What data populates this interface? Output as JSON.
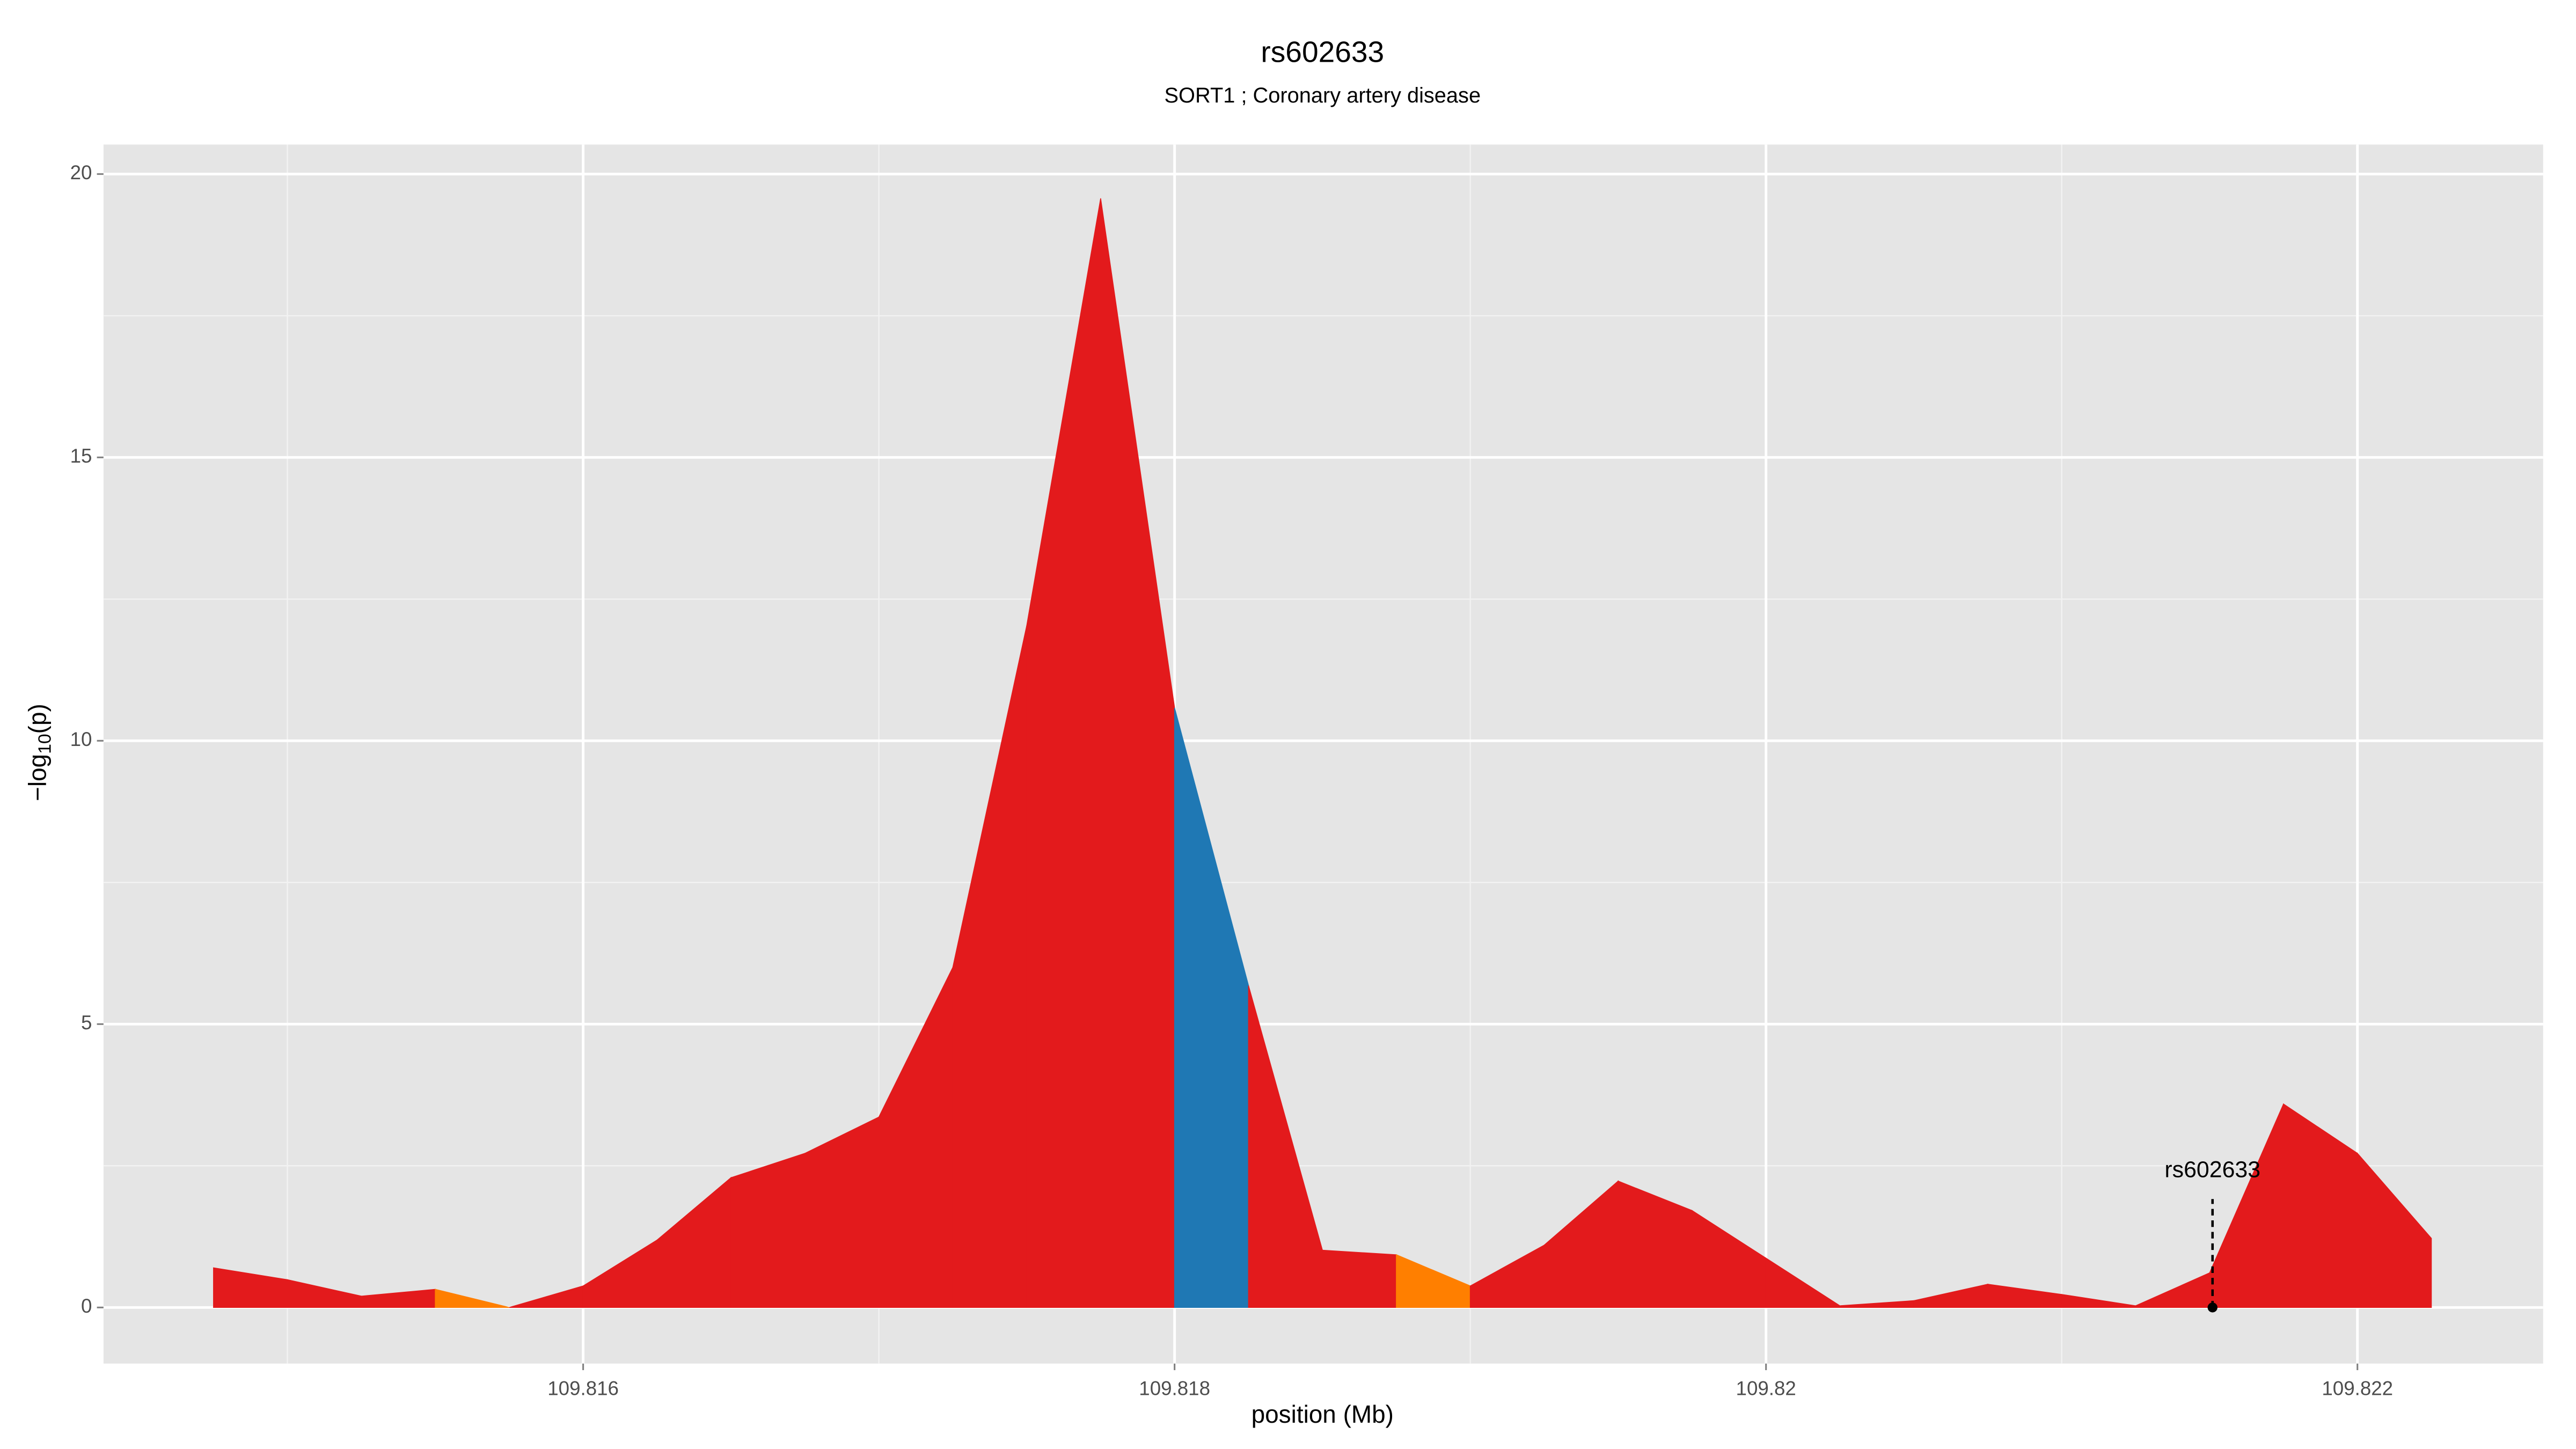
{
  "chart_data": {
    "type": "area",
    "title": "rs602633",
    "subtitle": "SORT1 ; Coronary artery disease",
    "xlabel": "position (Mb)",
    "ylabel": [
      "−log",
      "10",
      "(p)"
    ],
    "x": [
      109.81475,
      109.815,
      109.81525,
      109.8155,
      109.81575,
      109.816,
      109.81625,
      109.8165,
      109.81675,
      109.817,
      109.81725,
      109.8175,
      109.81775,
      109.818,
      109.81825,
      109.8185,
      109.81875,
      109.819,
      109.81925,
      109.8195,
      109.81975,
      109.82,
      109.82025,
      109.8205,
      109.82075,
      109.821,
      109.82125,
      109.8215,
      109.82175,
      109.822,
      109.82225
    ],
    "series": [
      {
        "values": [
          0.7,
          0.49,
          0.2,
          0.32,
          0,
          0.38,
          1.19,
          2.29,
          2.72,
          3.36,
          6.0,
          12.03,
          19.57,
          10.58,
          5.68,
          1.01,
          0.93,
          0.38,
          1.1,
          2.23,
          1.71,
          0.87,
          0.03,
          0.12,
          0.41,
          0.23,
          0.03,
          0.61,
          3.59,
          2.72,
          1.22
        ],
        "colors": [
          "#e31a1c",
          "#e31a1c",
          "#e31a1c",
          "#ff7f00",
          "#e31a1c",
          "#e31a1c",
          "#e31a1c",
          "#e31a1c",
          "#e31a1c",
          "#e31a1c",
          "#e31a1c",
          "#e31a1c",
          "#e31a1c",
          "#1f78b4",
          "#e31a1c",
          "#e31a1c",
          "#ff7f00",
          "#e31a1c",
          "#e31a1c",
          "#e31a1c",
          "#e31a1c",
          "#e31a1c",
          "#e31a1c",
          "#e31a1c",
          "#e31a1c",
          "#e31a1c",
          "#e31a1c",
          "#e31a1c",
          "#e31a1c",
          "#e31a1c",
          "#e31a1c"
        ]
      }
    ],
    "annotation": {
      "text": "rs602633",
      "x": 109.82151,
      "y": 0
    },
    "xlim": [
      109.814378,
      109.822628
    ],
    "ylim": [
      -0.99,
      20.52
    ],
    "xticks": [
      109.816,
      109.818,
      109.82,
      109.822
    ],
    "yticks": [
      0,
      5,
      10,
      15,
      20
    ],
    "minor_xticks": [
      109.815,
      109.817,
      109.819,
      109.821
    ],
    "minor_yticks": [
      2.5,
      7.5,
      12.5,
      17.5
    ],
    "grid": true
  }
}
